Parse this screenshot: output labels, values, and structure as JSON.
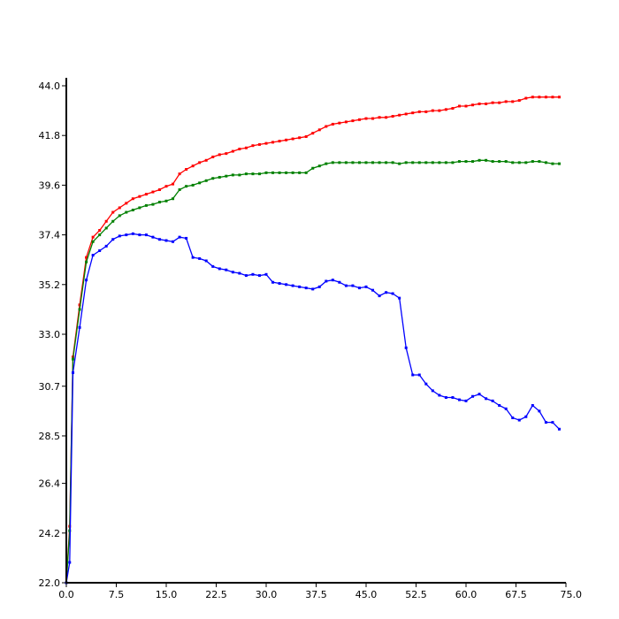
{
  "chart_data": {
    "type": "line",
    "title": "",
    "xlabel": "",
    "ylabel": "",
    "xlim": [
      0,
      75
    ],
    "ylim": [
      22,
      44
    ],
    "grid": false,
    "legend": "none",
    "x_ticks": [
      "0.0",
      "7.5",
      "15.0",
      "22.5",
      "30.0",
      "37.5",
      "45.0",
      "52.5",
      "60.0",
      "67.5",
      "75.0"
    ],
    "x_tick_values": [
      0,
      7.5,
      15,
      22.5,
      30,
      37.5,
      45,
      52.5,
      60,
      67.5,
      75
    ],
    "y_ticks": [
      "22.0",
      "24.2",
      "26.4",
      "28.5",
      "30.7",
      "33.0",
      "35.2",
      "37.4",
      "39.6",
      "41.8",
      "44.0"
    ],
    "y_tick_values": [
      22,
      24.2,
      26.4,
      28.5,
      30.7,
      33,
      35.2,
      37.4,
      39.6,
      41.8,
      44
    ],
    "series": [
      {
        "color": "#ff0000",
        "points": [
          [
            0,
            22
          ],
          [
            0.5,
            24.5
          ],
          [
            1,
            32
          ],
          [
            2,
            34.3
          ],
          [
            3,
            36.4
          ],
          [
            4,
            37.3
          ],
          [
            5,
            37.6
          ],
          [
            6,
            38
          ],
          [
            7,
            38.4
          ],
          [
            8,
            38.6
          ],
          [
            9,
            38.8
          ],
          [
            10,
            39
          ],
          [
            11,
            39.1
          ],
          [
            12,
            39.2
          ],
          [
            13,
            39.3
          ],
          [
            14,
            39.4
          ],
          [
            15,
            39.55
          ],
          [
            16,
            39.65
          ],
          [
            17,
            40.1
          ],
          [
            18,
            40.3
          ],
          [
            19,
            40.45
          ],
          [
            20,
            40.6
          ],
          [
            21,
            40.7
          ],
          [
            22,
            40.85
          ],
          [
            23,
            40.95
          ],
          [
            24,
            41
          ],
          [
            25,
            41.1
          ],
          [
            26,
            41.2
          ],
          [
            27,
            41.25
          ],
          [
            28,
            41.35
          ],
          [
            29,
            41.4
          ],
          [
            30,
            41.45
          ],
          [
            31,
            41.5
          ],
          [
            32,
            41.55
          ],
          [
            33,
            41.6
          ],
          [
            34,
            41.65
          ],
          [
            35,
            41.7
          ],
          [
            36,
            41.75
          ],
          [
            37,
            41.9
          ],
          [
            38,
            42.05
          ],
          [
            39,
            42.2
          ],
          [
            40,
            42.3
          ],
          [
            41,
            42.35
          ],
          [
            42,
            42.4
          ],
          [
            43,
            42.45
          ],
          [
            44,
            42.5
          ],
          [
            45,
            42.55
          ],
          [
            46,
            42.55
          ],
          [
            47,
            42.6
          ],
          [
            48,
            42.6
          ],
          [
            49,
            42.65
          ],
          [
            50,
            42.7
          ],
          [
            51,
            42.75
          ],
          [
            52,
            42.8
          ],
          [
            53,
            42.85
          ],
          [
            54,
            42.85
          ],
          [
            55,
            42.9
          ],
          [
            56,
            42.9
          ],
          [
            57,
            42.95
          ],
          [
            58,
            43
          ],
          [
            59,
            43.1
          ],
          [
            60,
            43.1
          ],
          [
            61,
            43.15
          ],
          [
            62,
            43.2
          ],
          [
            63,
            43.2
          ],
          [
            64,
            43.25
          ],
          [
            65,
            43.25
          ],
          [
            66,
            43.3
          ],
          [
            67,
            43.3
          ],
          [
            68,
            43.35
          ],
          [
            69,
            43.45
          ],
          [
            70,
            43.5
          ],
          [
            71,
            43.5
          ],
          [
            72,
            43.5
          ],
          [
            73,
            43.5
          ],
          [
            74,
            43.5
          ]
        ]
      },
      {
        "color": "#008000",
        "points": [
          [
            0,
            22
          ],
          [
            0.5,
            24.3
          ],
          [
            1,
            31.9
          ],
          [
            2,
            34.1
          ],
          [
            3,
            36.2
          ],
          [
            4,
            37.1
          ],
          [
            5,
            37.4
          ],
          [
            6,
            37.7
          ],
          [
            7,
            38
          ],
          [
            8,
            38.25
          ],
          [
            9,
            38.4
          ],
          [
            10,
            38.5
          ],
          [
            11,
            38.6
          ],
          [
            12,
            38.7
          ],
          [
            13,
            38.75
          ],
          [
            14,
            38.85
          ],
          [
            15,
            38.9
          ],
          [
            16,
            39
          ],
          [
            17,
            39.4
          ],
          [
            18,
            39.55
          ],
          [
            19,
            39.6
          ],
          [
            20,
            39.7
          ],
          [
            21,
            39.8
          ],
          [
            22,
            39.9
          ],
          [
            23,
            39.95
          ],
          [
            24,
            40
          ],
          [
            25,
            40.05
          ],
          [
            26,
            40.05
          ],
          [
            27,
            40.1
          ],
          [
            28,
            40.1
          ],
          [
            29,
            40.1
          ],
          [
            30,
            40.15
          ],
          [
            31,
            40.15
          ],
          [
            32,
            40.15
          ],
          [
            33,
            40.15
          ],
          [
            34,
            40.15
          ],
          [
            35,
            40.15
          ],
          [
            36,
            40.15
          ],
          [
            37,
            40.35
          ],
          [
            38,
            40.45
          ],
          [
            39,
            40.55
          ],
          [
            40,
            40.6
          ],
          [
            41,
            40.6
          ],
          [
            42,
            40.6
          ],
          [
            43,
            40.6
          ],
          [
            44,
            40.6
          ],
          [
            45,
            40.6
          ],
          [
            46,
            40.6
          ],
          [
            47,
            40.6
          ],
          [
            48,
            40.6
          ],
          [
            49,
            40.6
          ],
          [
            50,
            40.55
          ],
          [
            51,
            40.6
          ],
          [
            52,
            40.6
          ],
          [
            53,
            40.6
          ],
          [
            54,
            40.6
          ],
          [
            55,
            40.6
          ],
          [
            56,
            40.6
          ],
          [
            57,
            40.6
          ],
          [
            58,
            40.6
          ],
          [
            59,
            40.65
          ],
          [
            60,
            40.65
          ],
          [
            61,
            40.65
          ],
          [
            62,
            40.7
          ],
          [
            63,
            40.7
          ],
          [
            64,
            40.65
          ],
          [
            65,
            40.65
          ],
          [
            66,
            40.65
          ],
          [
            67,
            40.6
          ],
          [
            68,
            40.6
          ],
          [
            69,
            40.6
          ],
          [
            70,
            40.65
          ],
          [
            71,
            40.65
          ],
          [
            72,
            40.6
          ],
          [
            73,
            40.55
          ],
          [
            74,
            40.55
          ]
        ]
      },
      {
        "color": "#0000ff",
        "points": [
          [
            0,
            22
          ],
          [
            0.5,
            22.9
          ],
          [
            1,
            31.3
          ],
          [
            2,
            33.3
          ],
          [
            3,
            35.4
          ],
          [
            4,
            36.5
          ],
          [
            5,
            36.7
          ],
          [
            6,
            36.9
          ],
          [
            7,
            37.2
          ],
          [
            8,
            37.35
          ],
          [
            9,
            37.4
          ],
          [
            10,
            37.45
          ],
          [
            11,
            37.4
          ],
          [
            12,
            37.4
          ],
          [
            13,
            37.3
          ],
          [
            14,
            37.2
          ],
          [
            15,
            37.15
          ],
          [
            16,
            37.1
          ],
          [
            17,
            37.3
          ],
          [
            18,
            37.25
          ],
          [
            19,
            36.4
          ],
          [
            20,
            36.35
          ],
          [
            21,
            36.25
          ],
          [
            22,
            36
          ],
          [
            23,
            35.9
          ],
          [
            24,
            35.85
          ],
          [
            25,
            35.75
          ],
          [
            26,
            35.7
          ],
          [
            27,
            35.6
          ],
          [
            28,
            35.65
          ],
          [
            29,
            35.6
          ],
          [
            30,
            35.65
          ],
          [
            31,
            35.3
          ],
          [
            32,
            35.25
          ],
          [
            33,
            35.2
          ],
          [
            34,
            35.15
          ],
          [
            35,
            35.1
          ],
          [
            36,
            35.05
          ],
          [
            37,
            35
          ],
          [
            38,
            35.1
          ],
          [
            39,
            35.35
          ],
          [
            40,
            35.4
          ],
          [
            41,
            35.3
          ],
          [
            42,
            35.15
          ],
          [
            43,
            35.15
          ],
          [
            44,
            35.05
          ],
          [
            45,
            35.1
          ],
          [
            46,
            34.95
          ],
          [
            47,
            34.7
          ],
          [
            48,
            34.85
          ],
          [
            49,
            34.8
          ],
          [
            50,
            34.6
          ],
          [
            51,
            32.4
          ],
          [
            52,
            31.2
          ],
          [
            53,
            31.2
          ],
          [
            54,
            30.8
          ],
          [
            55,
            30.5
          ],
          [
            56,
            30.3
          ],
          [
            57,
            30.2
          ],
          [
            58,
            30.2
          ],
          [
            59,
            30.1
          ],
          [
            60,
            30.05
          ],
          [
            61,
            30.25
          ],
          [
            62,
            30.35
          ],
          [
            63,
            30.15
          ],
          [
            64,
            30.05
          ],
          [
            65,
            29.85
          ],
          [
            66,
            29.7
          ],
          [
            67,
            29.3
          ],
          [
            68,
            29.2
          ],
          [
            69,
            29.35
          ],
          [
            70,
            29.85
          ],
          [
            71,
            29.6
          ],
          [
            72,
            29.1
          ],
          [
            73,
            29.1
          ],
          [
            74,
            28.8
          ]
        ]
      }
    ]
  }
}
